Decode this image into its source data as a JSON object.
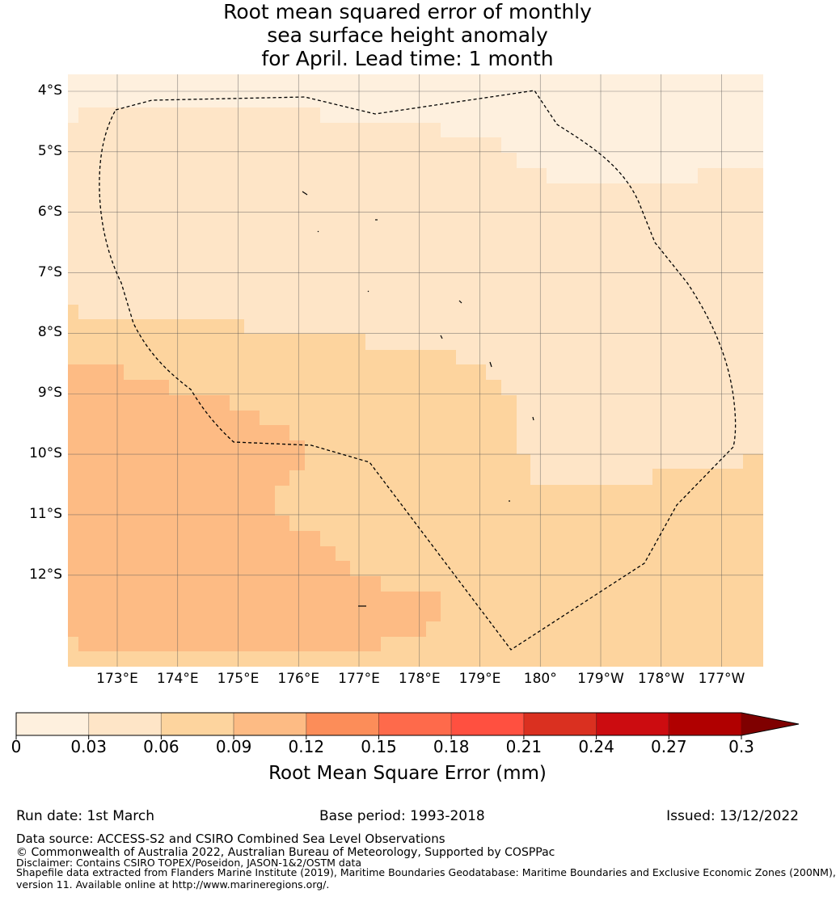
{
  "title_lines": [
    "Root mean squared error of monthly",
    "sea surface height anomaly",
    "for April. Lead time: 1 month"
  ],
  "chart_data": {
    "type": "heatmap",
    "title": "Root mean squared error of monthly sea surface height anomaly for April. Lead time: 1 month",
    "lat_ticks": [
      {
        "value": 4,
        "label": "4°S"
      },
      {
        "value": 5,
        "label": "5°S"
      },
      {
        "value": 6,
        "label": "6°S"
      },
      {
        "value": 7,
        "label": "7°S"
      },
      {
        "value": 8,
        "label": "8°S"
      },
      {
        "value": 9,
        "label": "9°S"
      },
      {
        "value": 10,
        "label": "10°S"
      },
      {
        "value": 11,
        "label": "11°S"
      },
      {
        "value": 12,
        "label": "12°S"
      }
    ],
    "lon_ticks": [
      {
        "value": 173,
        "label": "173°E"
      },
      {
        "value": 174,
        "label": "174°E"
      },
      {
        "value": 175,
        "label": "175°E"
      },
      {
        "value": 176,
        "label": "176°E"
      },
      {
        "value": 177,
        "label": "177°E"
      },
      {
        "value": 178,
        "label": "178°E"
      },
      {
        "value": 179,
        "label": "179°E"
      },
      {
        "value": 180,
        "label": "180°"
      },
      {
        "value": 181,
        "label": "179°W"
      },
      {
        "value": 182,
        "label": "178°W"
      },
      {
        "value": 183,
        "label": "177°W"
      }
    ],
    "regions": [
      {
        "range": "0.00-0.03",
        "location": "northern band"
      },
      {
        "range": "0.03-0.06",
        "location": "central and north-east"
      },
      {
        "range": "0.06-0.09",
        "location": "south and south-east"
      },
      {
        "range": "0.09-0.12",
        "location": "south-west"
      }
    ],
    "colorbar": {
      "label": "Root Mean Square Error (mm)",
      "ticks": [
        "0",
        "0.03",
        "0.06",
        "0.09",
        "0.12",
        "0.15",
        "0.18",
        "0.21",
        "0.24",
        "0.27",
        "0.3"
      ],
      "colors": [
        "#fef0de",
        "#fee5c7",
        "#fdd49e",
        "#fdbb84",
        "#fc8d59",
        "#fe6a4b",
        "#ff5040",
        "#da3020",
        "#cc0c10",
        "#b00000"
      ],
      "extend_color": "#7f0000"
    }
  },
  "footer": {
    "run_date": "Run date: 1st March",
    "base_period": "Base period: 1993-2018",
    "issued": "Issued: 13/12/2022",
    "data_source": "Data source: ACCESS-S2 and CSIRO Combined Sea Level Observations",
    "copyright": "© Commonwealth of Australia 2022, Australian Bureau of Meteorology, Supported by COSPPac",
    "disclaimer": "Disclaimer: Contains CSIRO TOPEX/Poseidon, JASON-1&2/OSTM data",
    "shapefile_1": "Shapefile data extracted from Flanders Marine Institute (2019), Maritime Boundaries Geodatabase: Maritime Boundaries and Exclusive Economic Zones (200NM),",
    "shapefile_2": "version 11. Available online at http://www.marineregions.org/."
  }
}
